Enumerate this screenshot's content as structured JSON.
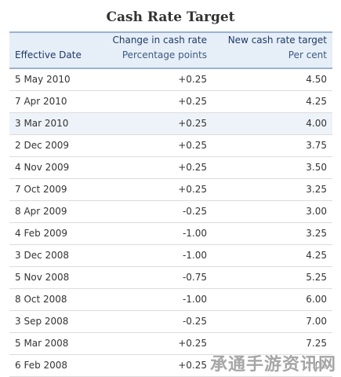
{
  "title": "Cash Rate Target",
  "columns": {
    "effective_date": "Effective Date",
    "change_label": "Change in cash rate",
    "change_unit": "Percentage points",
    "new_label": "New cash rate target",
    "new_unit": "Per cent"
  },
  "rows": [
    {
      "date": "5 May 2010",
      "change": "+0.25",
      "rate": "4.50"
    },
    {
      "date": "7 Apr 2010",
      "change": "+0.25",
      "rate": "4.25"
    },
    {
      "date": "3 Mar 2010",
      "change": "+0.25",
      "rate": "4.00"
    },
    {
      "date": "2 Dec 2009",
      "change": "+0.25",
      "rate": "3.75"
    },
    {
      "date": "4 Nov 2009",
      "change": "+0.25",
      "rate": "3.50"
    },
    {
      "date": "7 Oct 2009",
      "change": "+0.25",
      "rate": "3.25"
    },
    {
      "date": "8 Apr 2009",
      "change": "-0.25",
      "rate": "3.00"
    },
    {
      "date": "4 Feb 2009",
      "change": "-1.00",
      "rate": "3.25"
    },
    {
      "date": "3 Dec 2008",
      "change": "-1.00",
      "rate": "4.25"
    },
    {
      "date": "5 Nov 2008",
      "change": "-0.75",
      "rate": "5.25"
    },
    {
      "date": "8 Oct 2008",
      "change": "-1.00",
      "rate": "6.00"
    },
    {
      "date": "3 Sep 2008",
      "change": "-0.25",
      "rate": "7.00"
    },
    {
      "date": "5 Mar 2008",
      "change": "+0.25",
      "rate": "7.25"
    },
    {
      "date": "6 Feb 2008",
      "change": "+0.25",
      "rate": "7.00"
    }
  ],
  "highlighted_row": 2,
  "watermark": "承通手游资讯网"
}
